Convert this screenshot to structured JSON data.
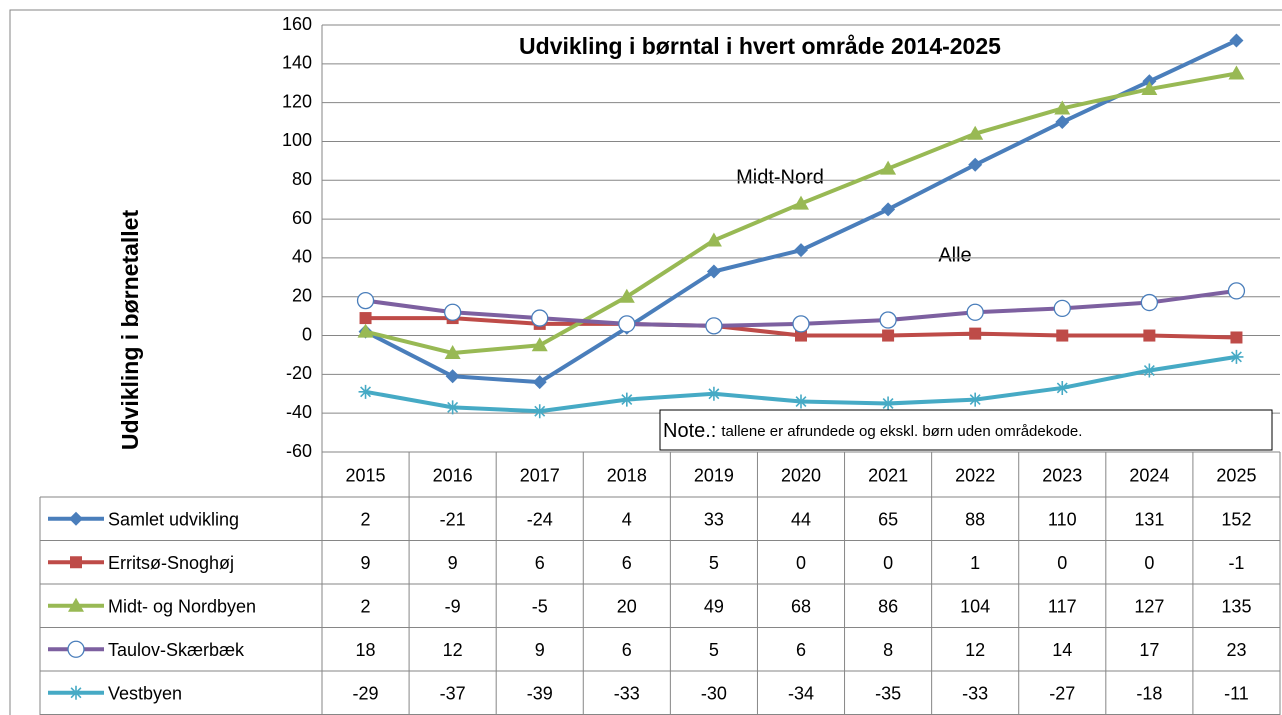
{
  "chart_data": {
    "type": "line",
    "title": "Udvikling i børntal i hvert område 2014-2025",
    "y_label": "Udvikling i børnetallet",
    "categories": [
      "2015",
      "2016",
      "2017",
      "2018",
      "2019",
      "2020",
      "2021",
      "2022",
      "2023",
      "2024",
      "2025"
    ],
    "ylim": [
      -60,
      160
    ],
    "yticks": [
      -60,
      -40,
      -20,
      0,
      20,
      40,
      60,
      80,
      100,
      120,
      140,
      160
    ],
    "grid": true,
    "series": [
      {
        "name": "Samlet udvikling",
        "color": "#4a7ebb",
        "marker": "diamond",
        "values": [
          2,
          -21,
          -24,
          4,
          33,
          44,
          65,
          88,
          110,
          131,
          152
        ]
      },
      {
        "name": "Erritsø-Snoghøj",
        "color": "#be4b48",
        "marker": "square",
        "values": [
          9,
          9,
          6,
          6,
          5,
          0,
          0,
          1,
          0,
          0,
          -1
        ]
      },
      {
        "name": "Midt- og Nordbyen",
        "color": "#98b954",
        "marker": "triangle",
        "values": [
          2,
          -9,
          -5,
          20,
          49,
          68,
          86,
          104,
          117,
          127,
          135
        ]
      },
      {
        "name": "Taulov-Skærbæk",
        "color": "#7d60a0",
        "marker": "circle",
        "values": [
          18,
          12,
          9,
          6,
          5,
          6,
          8,
          12,
          14,
          17,
          23
        ]
      },
      {
        "name": "Vestbyen",
        "color": "#46aac5",
        "marker": "star",
        "values": [
          -29,
          -37,
          -39,
          -33,
          -30,
          -34,
          -35,
          -33,
          -27,
          -18,
          -11
        ]
      }
    ],
    "annotations": [
      "Midt-Nord",
      "Alle"
    ],
    "note": {
      "label": "Note.:",
      "text": "tallene er afrundede og ekskl.  børn uden områdekode."
    }
  }
}
